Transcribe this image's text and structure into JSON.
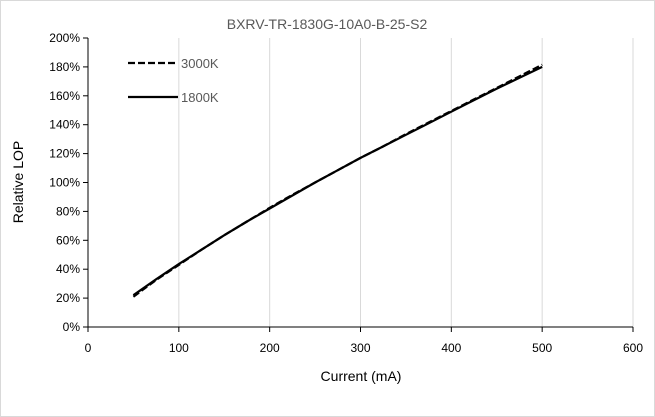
{
  "chart_data": {
    "type": "line",
    "title": "BXRV-TR-1830G-10A0-B-25-S2",
    "xlabel": "Current (mA)",
    "ylabel": "Relative LOP",
    "xlim": [
      0,
      600
    ],
    "ylim": [
      0,
      200
    ],
    "x_ticks": [
      "0",
      "100",
      "200",
      "300",
      "400",
      "500",
      "600"
    ],
    "y_ticks": [
      "0%",
      "20%",
      "40%",
      "60%",
      "80%",
      "100%",
      "120%",
      "140%",
      "160%",
      "180%",
      "200%"
    ],
    "grid": "vertical",
    "legend_position": "top-left",
    "series": [
      {
        "name": "3000K",
        "style": "dashed",
        "color": "#000000",
        "x": [
          50,
          75,
          100,
          125,
          150,
          175,
          200,
          225,
          250,
          275,
          300,
          325,
          350,
          375,
          400,
          425,
          450,
          475,
          500
        ],
        "y": [
          21,
          32.5,
          43,
          53.5,
          63.5,
          73,
          82.5,
          91.5,
          100,
          108.5,
          117,
          125,
          133.5,
          141.5,
          149.5,
          157.5,
          165.5,
          173.5,
          181.5
        ]
      },
      {
        "name": "1800K",
        "style": "solid",
        "color": "#000000",
        "x": [
          50,
          75,
          100,
          125,
          150,
          175,
          200,
          225,
          250,
          275,
          300,
          325,
          350,
          375,
          400,
          425,
          450,
          475,
          500
        ],
        "y": [
          22,
          33,
          43.5,
          53.5,
          63.5,
          73,
          82,
          91,
          100,
          108.5,
          117,
          125,
          133,
          141,
          149,
          157,
          165,
          172.5,
          180
        ]
      }
    ]
  }
}
